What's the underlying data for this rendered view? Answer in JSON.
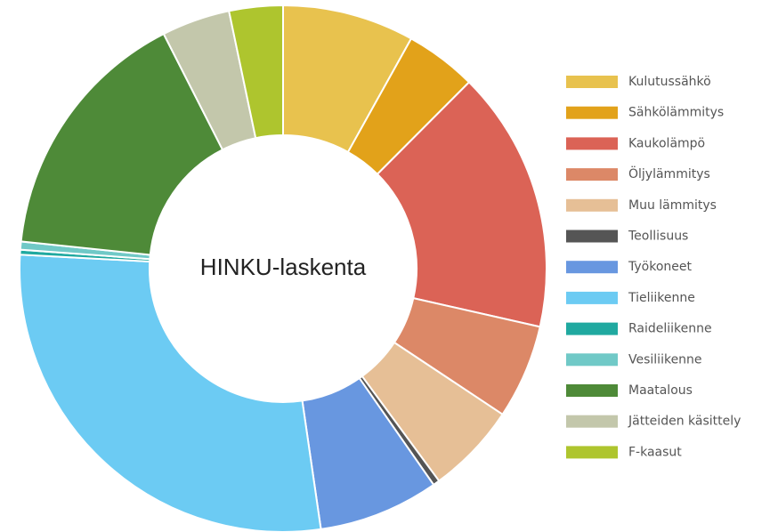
{
  "chart_data": {
    "type": "donut",
    "title": "HINKU-laskenta",
    "categories": [
      "Kulutussähkö",
      "Sähkölämmitys",
      "Kaukolämpö",
      "Öljylämmitys",
      "Muu lämmitys",
      "Teollisuus",
      "Työkoneet",
      "Tieliikenne",
      "Raideliikenne",
      "Vesiliikenne",
      "Maatalous",
      "Jätteiden käsittely",
      "F-kaasut"
    ],
    "values": [
      8.1,
      4.4,
      16.1,
      5.8,
      5.6,
      0.4,
      7.4,
      28.2,
      0.3,
      0.5,
      15.9,
      4.2,
      3.3
    ],
    "colors": [
      "#e8c24e",
      "#e2a21a",
      "#db6356",
      "#dc8867",
      "#e6bf96",
      "#555555",
      "#6897e0",
      "#6ccbf3",
      "#20a9a0",
      "#70c9c7",
      "#4e8a38",
      "#c3c7ab",
      "#aec52e"
    ],
    "legend": "right"
  }
}
